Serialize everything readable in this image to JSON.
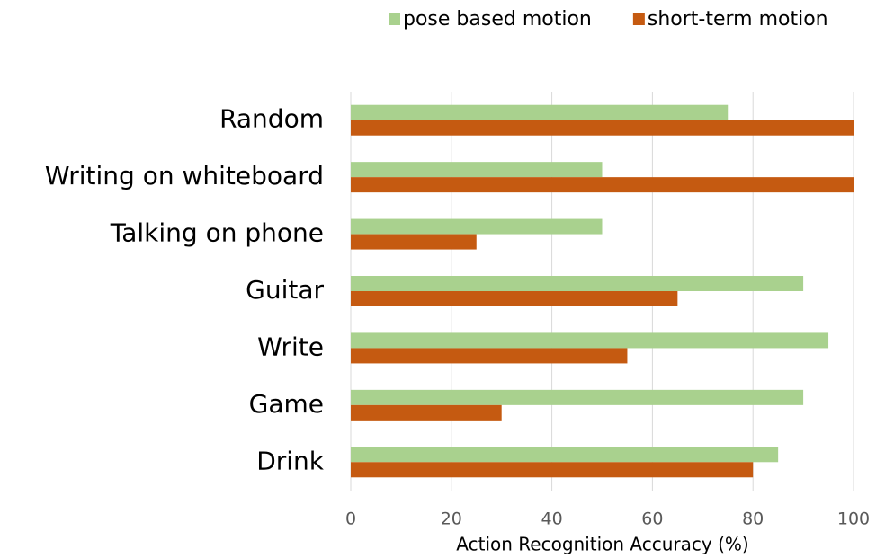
{
  "chart_data": {
    "type": "hbar",
    "x_label": "Action Recognition Accuracy (%)",
    "categories": [
      "Random",
      "Writing on whiteboard",
      "Talking on phone",
      "Guitar",
      "Write",
      "Game",
      "Drink"
    ],
    "series": [
      {
        "name": "pose based motion",
        "color": "#a9d18e",
        "values": [
          75,
          50,
          50,
          90,
          95,
          90,
          85
        ]
      },
      {
        "name": "short-term motion",
        "color": "#c55a11",
        "values": [
          100,
          100,
          25,
          65,
          55,
          30,
          80
        ]
      }
    ],
    "xlim": [
      0,
      100
    ],
    "xticks": [
      0,
      20,
      40,
      60,
      80,
      100
    ],
    "grid": true,
    "legend": "top"
  }
}
